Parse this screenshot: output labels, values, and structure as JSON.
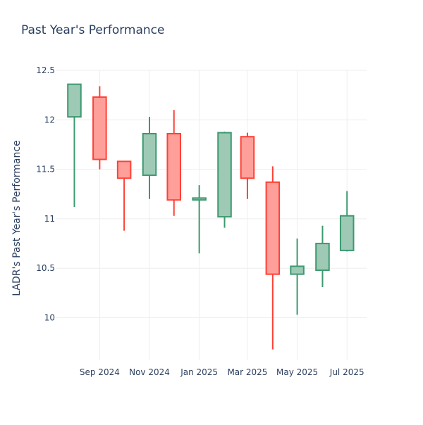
{
  "chart_data": {
    "type": "candlestick",
    "title": "Past Year's Performance",
    "xlabel": "",
    "ylabel": "LADR's Past Year's Performance",
    "ylim": [
      9.57,
      12.5
    ],
    "y_ticks": [
      10,
      10.5,
      11,
      11.5,
      12,
      12.5
    ],
    "y_tick_labels": [
      "10",
      "10.5",
      "11",
      "11.5",
      "12",
      "12.5"
    ],
    "x_ticks": [
      "2024-09-01",
      "2024-11-01",
      "2025-01-01",
      "2025-03-01",
      "2025-05-01",
      "2025-07-01"
    ],
    "x_tick_labels": [
      "Sep 2024",
      "Nov 2024",
      "Jan 2025",
      "Mar 2025",
      "May 2025",
      "Jul 2025"
    ],
    "xlim": [
      "2024-07-10",
      "2025-07-25"
    ],
    "grid": true,
    "colors": {
      "increasing": "#3d9970",
      "decreasing": "#ff4136",
      "increasing_fill": "#9ecab5",
      "decreasing_fill": "#ff9f9a"
    },
    "candles": [
      {
        "date": "2024-08-01",
        "open": 12.03,
        "high": 12.36,
        "low": 11.12,
        "close": 12.36
      },
      {
        "date": "2024-09-01",
        "open": 12.23,
        "high": 12.34,
        "low": 11.5,
        "close": 11.6
      },
      {
        "date": "2024-10-01",
        "open": 11.58,
        "high": 11.58,
        "low": 10.88,
        "close": 11.41
      },
      {
        "date": "2024-11-01",
        "open": 11.44,
        "high": 12.03,
        "low": 11.2,
        "close": 11.86
      },
      {
        "date": "2024-12-01",
        "open": 11.86,
        "high": 12.1,
        "low": 11.03,
        "close": 11.19
      },
      {
        "date": "2025-01-01",
        "open": 11.19,
        "high": 11.34,
        "low": 10.65,
        "close": 11.21
      },
      {
        "date": "2025-02-01",
        "open": 11.02,
        "high": 11.88,
        "low": 10.91,
        "close": 11.87
      },
      {
        "date": "2025-03-01",
        "open": 11.83,
        "high": 11.87,
        "low": 11.2,
        "close": 11.41
      },
      {
        "date": "2025-04-01",
        "open": 11.37,
        "high": 11.53,
        "low": 9.68,
        "close": 10.44
      },
      {
        "date": "2025-05-01",
        "open": 10.44,
        "high": 10.8,
        "low": 10.03,
        "close": 10.52
      },
      {
        "date": "2025-06-01",
        "open": 10.48,
        "high": 10.93,
        "low": 10.31,
        "close": 10.75
      },
      {
        "date": "2025-07-01",
        "open": 10.68,
        "high": 11.28,
        "low": 10.67,
        "close": 11.03
      }
    ]
  }
}
